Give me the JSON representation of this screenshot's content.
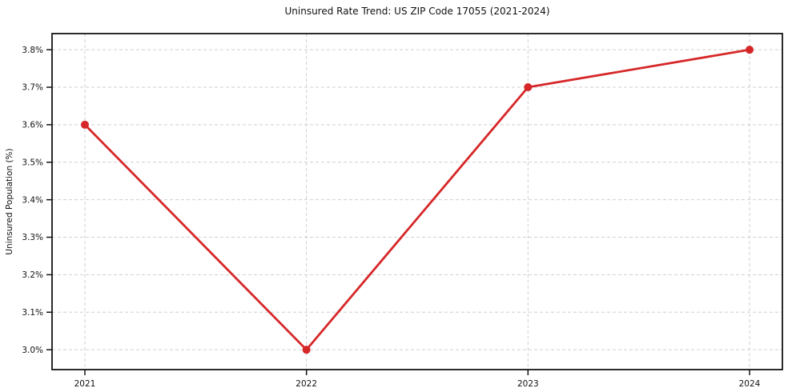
{
  "page": {
    "title": "Uninsured Rate Trend: US ZIP Code 17055 (2021-2024)"
  },
  "chart_data": {
    "type": "line",
    "title": "Uninsured Rate Trend: US ZIP Code 17055 (2021-2024)",
    "xlabel": "",
    "ylabel": "Uninsured Population (%)",
    "categories": [
      "2021",
      "2022",
      "2023",
      "2024"
    ],
    "series": [
      {
        "name": "Uninsured Rate",
        "values": [
          3.6,
          3.0,
          3.7,
          3.8
        ]
      }
    ],
    "yticks": [
      3.0,
      3.1,
      3.2,
      3.3,
      3.4,
      3.5,
      3.6,
      3.7,
      3.8
    ],
    "ytick_labels": [
      "3.0%",
      "3.1%",
      "3.2%",
      "3.3%",
      "3.4%",
      "3.5%",
      "3.6%",
      "3.7%",
      "3.8%"
    ],
    "ylim": [
      2.947,
      3.843
    ],
    "grid": true,
    "legend_position": "none",
    "line_color": "#d62728",
    "marker": "circle",
    "background_color": "#ffffff",
    "axes_color": "#141414",
    "grid_color": "#cfcfcf"
  }
}
